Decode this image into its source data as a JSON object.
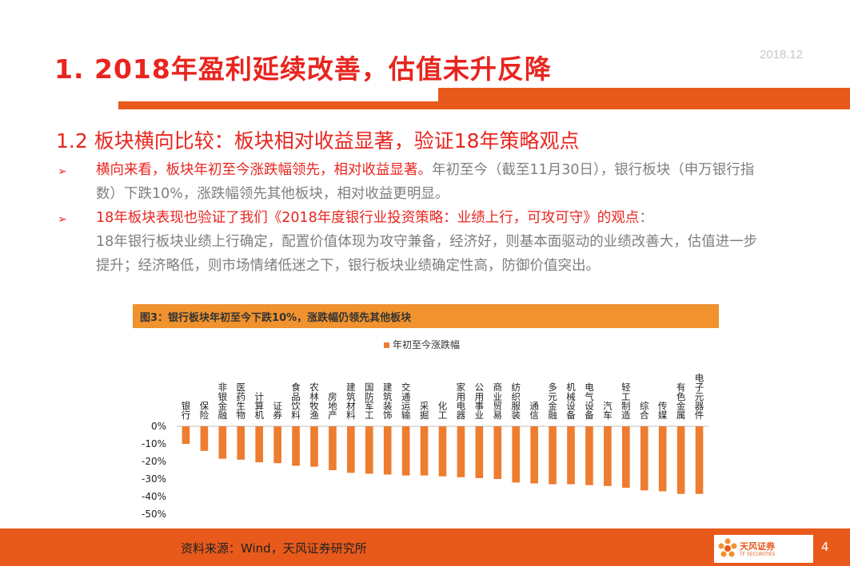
{
  "date": "2018.12",
  "title": "1. 2018年盈利延续改善，估值未升反降",
  "subtitle": "1.2 板块横向比较：板块相对收益显著，验证18年策略观点",
  "bullet_glyph": "➢",
  "para1_highlight": "横向来看，板块年初至今涨跌幅领先，相对收益显著。",
  "para1_rest": "年初至今（截至11月30日），银行板块（申万银行指数）下跌10%，涨跌幅领先其他板块，相对收益更明显。",
  "para2_highlight": "18年板块表现也验证了我们《2018年度银行业投资策略：业绩上行，可攻可守》的观点",
  "para2_colon": "：",
  "para2_rest": "18年银行板块业绩上行确定，配置价值体现为攻守兼备，经济好，则基本面驱动的业绩改善大，估值进一步提升；经济略低，则市场情绪低迷之下，银行板块业绩确定性高，防御价值突出。",
  "figure_title": "图3：银行板块年初至今下跌10%，涨跌幅仍领先其他板块",
  "source": "资料来源：Wind，天风证券研究所",
  "logo_text": "天风证券",
  "logo_sub": "TF SECURITIES",
  "page_number": "4",
  "colors": {
    "accent": "#e85a1c",
    "title_red": "#e8251f",
    "bar": "#ed7d31",
    "figure_header": "#f0922e"
  },
  "chart_data": {
    "type": "bar",
    "categories": [
      "银行",
      "保险",
      "非银金融",
      "医药生物",
      "计算机",
      "证券",
      "食品饮料",
      "农林牧渔",
      "房地产",
      "建筑材料",
      "国防军工",
      "建筑装饰",
      "交通运输",
      "采掘",
      "化工",
      "家用电器",
      "公用事业",
      "商业贸易",
      "纺织服装",
      "通信",
      "多元金融",
      "机械设备",
      "电气设备",
      "汽车",
      "轻工制造",
      "综合",
      "传媒",
      "有色金属",
      "电子元器件"
    ],
    "series": [
      {
        "name": "年初至今涨跌幅",
        "values": [
          -10,
          -14,
          -18.5,
          -19,
          -20.5,
          -21,
          -22.5,
          -23,
          -25,
          -26.5,
          -27,
          -27.5,
          -28,
          -28,
          -28.5,
          -29,
          -29.5,
          -30,
          -32,
          -32.5,
          -33,
          -33,
          -33.5,
          -34,
          -35,
          -36.5,
          -37,
          -38.5,
          -38.5
        ]
      }
    ],
    "yticks": [
      "0%",
      "-10%",
      "-20%",
      "-30%",
      "-40%",
      "-50%"
    ],
    "ylim": [
      -50,
      0
    ],
    "legend_position": "top-center",
    "grid": false
  }
}
